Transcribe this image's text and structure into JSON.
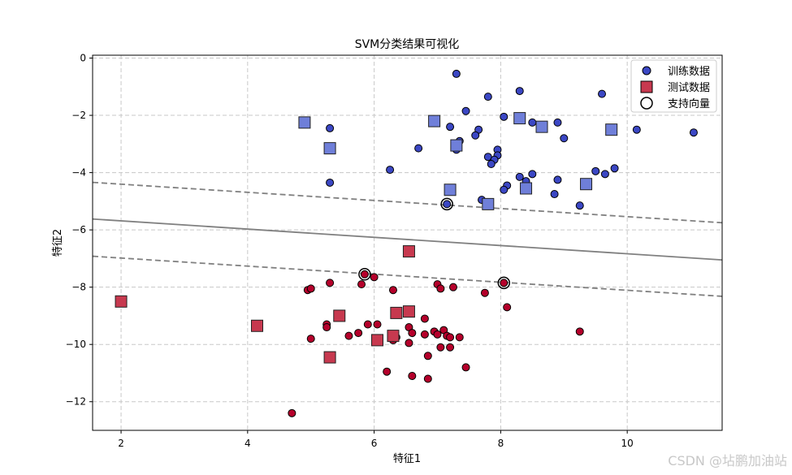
{
  "chart_data": {
    "type": "scatter",
    "title": "SVM分类结果可视化",
    "xlabel": "特征1",
    "ylabel": "特征2",
    "xlim": [
      1.55,
      11.5
    ],
    "ylim": [
      -13.0,
      0.1
    ],
    "xticks": [
      2,
      4,
      6,
      8,
      10
    ],
    "yticks": [
      0,
      -2,
      -4,
      -6,
      -8,
      -10,
      -12
    ],
    "grid": true,
    "legend_position": "top-right",
    "colors": {
      "train_class0": "#3b47c4",
      "train_class1": "#b5002b",
      "test_class0": "#6f7fd9",
      "test_class1": "#c7394f",
      "boundary": "#808080"
    },
    "legend": [
      "训练数据",
      "测试数据",
      "支持向量"
    ],
    "series": [
      {
        "name": "训练数据",
        "marker": "circle",
        "class0_points": [
          [
            7.3,
            -0.55
          ],
          [
            8.3,
            -1.15
          ],
          [
            7.8,
            -1.35
          ],
          [
            9.6,
            -1.25
          ],
          [
            7.45,
            -1.85
          ],
          [
            8.05,
            -2.05
          ],
          [
            8.5,
            -2.25
          ],
          [
            8.9,
            -2.25
          ],
          [
            7.2,
            -2.4
          ],
          [
            7.65,
            -2.5
          ],
          [
            7.6,
            -2.7
          ],
          [
            7.35,
            -2.9
          ],
          [
            5.3,
            -2.45
          ],
          [
            10.15,
            -2.5
          ],
          [
            11.05,
            -2.6
          ],
          [
            9.0,
            -2.8
          ],
          [
            6.7,
            -3.15
          ],
          [
            7.3,
            -3.2
          ],
          [
            7.95,
            -3.2
          ],
          [
            7.95,
            -3.4
          ],
          [
            7.8,
            -3.45
          ],
          [
            7.9,
            -3.55
          ],
          [
            7.85,
            -3.7
          ],
          [
            6.25,
            -3.9
          ],
          [
            9.8,
            -3.85
          ],
          [
            9.5,
            -3.95
          ],
          [
            9.65,
            -4.05
          ],
          [
            8.3,
            -4.15
          ],
          [
            8.5,
            -4.05
          ],
          [
            8.4,
            -4.3
          ],
          [
            8.9,
            -4.25
          ],
          [
            5.3,
            -4.35
          ],
          [
            8.1,
            -4.45
          ],
          [
            8.05,
            -4.6
          ],
          [
            8.85,
            -4.75
          ],
          [
            7.7,
            -4.95
          ],
          [
            9.25,
            -5.15
          ],
          [
            7.15,
            -5.1
          ]
        ],
        "class1_points": [
          [
            6.0,
            -7.65
          ],
          [
            5.85,
            -7.55
          ],
          [
            5.3,
            -7.85
          ],
          [
            5.8,
            -7.9
          ],
          [
            7.0,
            -7.9
          ],
          [
            7.05,
            -8.05
          ],
          [
            7.25,
            -8.0
          ],
          [
            4.95,
            -8.1
          ],
          [
            5.0,
            -8.05
          ],
          [
            6.3,
            -8.1
          ],
          [
            7.75,
            -8.2
          ],
          [
            8.05,
            -7.85
          ],
          [
            8.1,
            -8.7
          ],
          [
            6.8,
            -9.1
          ],
          [
            5.9,
            -9.3
          ],
          [
            6.05,
            -9.3
          ],
          [
            5.25,
            -9.3
          ],
          [
            5.25,
            -9.4
          ],
          [
            6.55,
            -9.4
          ],
          [
            7.1,
            -9.5
          ],
          [
            6.95,
            -9.55
          ],
          [
            7.0,
            -9.65
          ],
          [
            5.75,
            -9.6
          ],
          [
            6.6,
            -9.6
          ],
          [
            6.8,
            -9.65
          ],
          [
            5.6,
            -9.7
          ],
          [
            7.15,
            -9.7
          ],
          [
            7.2,
            -9.75
          ],
          [
            7.35,
            -9.75
          ],
          [
            5.0,
            -9.8
          ],
          [
            6.35,
            -9.75
          ],
          [
            6.3,
            -9.85
          ],
          [
            6.55,
            -9.95
          ],
          [
            7.05,
            -10.1
          ],
          [
            7.2,
            -10.1
          ],
          [
            6.85,
            -10.4
          ],
          [
            6.2,
            -10.95
          ],
          [
            7.45,
            -10.8
          ],
          [
            6.6,
            -11.1
          ],
          [
            6.85,
            -11.2
          ],
          [
            9.25,
            -9.55
          ],
          [
            4.7,
            -12.4
          ]
        ]
      },
      {
        "name": "测试数据",
        "marker": "square",
        "class0_points": [
          [
            4.9,
            -2.25
          ],
          [
            6.95,
            -2.2
          ],
          [
            8.3,
            -2.1
          ],
          [
            8.65,
            -2.4
          ],
          [
            9.75,
            -2.5
          ],
          [
            5.3,
            -3.15
          ],
          [
            7.3,
            -3.05
          ],
          [
            7.2,
            -4.6
          ],
          [
            8.4,
            -4.55
          ],
          [
            9.35,
            -4.4
          ],
          [
            7.8,
            -5.1
          ]
        ],
        "class1_points": [
          [
            6.55,
            -6.75
          ],
          [
            2.0,
            -8.5
          ],
          [
            4.15,
            -9.35
          ],
          [
            5.45,
            -9.0
          ],
          [
            6.35,
            -8.9
          ],
          [
            6.55,
            -8.85
          ],
          [
            6.05,
            -9.85
          ],
          [
            6.3,
            -9.7
          ],
          [
            5.3,
            -10.45
          ]
        ]
      },
      {
        "name": "支持向量",
        "marker": "ring",
        "points": [
          [
            7.15,
            -5.1
          ],
          [
            5.85,
            -7.55
          ],
          [
            8.05,
            -7.85
          ]
        ]
      }
    ],
    "lines": [
      {
        "style": "solid",
        "x": [
          1.55,
          11.5
        ],
        "y": [
          -5.62,
          -7.05
        ]
      },
      {
        "style": "dashed",
        "x": [
          1.55,
          11.5
        ],
        "y": [
          -4.34,
          -5.75
        ]
      },
      {
        "style": "dashed",
        "x": [
          1.55,
          11.5
        ],
        "y": [
          -6.92,
          -8.32
        ]
      }
    ]
  },
  "watermark": "CSDN @坫鹏加油站"
}
